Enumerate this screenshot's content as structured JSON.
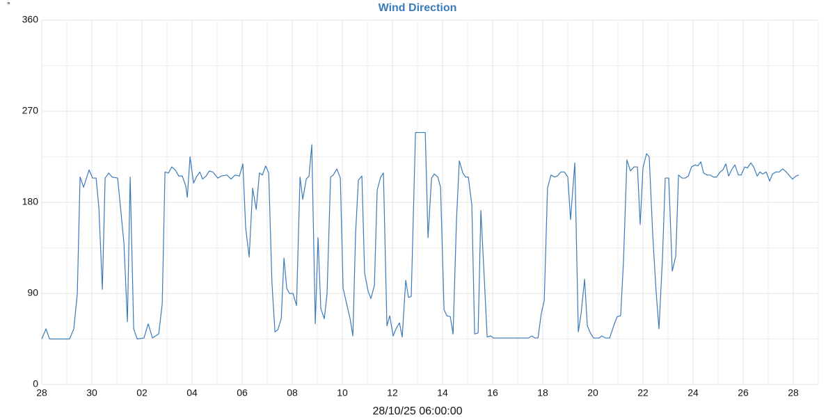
{
  "chart_data": {
    "type": "line",
    "title": "Wind Direction",
    "y_label": "°",
    "x_label": "28/10/25 06:00:00",
    "grid": true,
    "grid_minor": true,
    "xlim": [
      0,
      31
    ],
    "xticks": [
      {
        "value": 0,
        "label": "28"
      },
      {
        "value": 2,
        "label": "30"
      },
      {
        "value": 4,
        "label": "02"
      },
      {
        "value": 6,
        "label": "04"
      },
      {
        "value": 8,
        "label": "06"
      },
      {
        "value": 10,
        "label": "08"
      },
      {
        "value": 12,
        "label": "10"
      },
      {
        "value": 14,
        "label": "12"
      },
      {
        "value": 16,
        "label": "14"
      },
      {
        "value": 18,
        "label": "16"
      },
      {
        "value": 20,
        "label": "18"
      },
      {
        "value": 22,
        "label": "20"
      },
      {
        "value": 24,
        "label": "22"
      },
      {
        "value": 26,
        "label": "24"
      },
      {
        "value": 28,
        "label": "26"
      },
      {
        "value": 30,
        "label": "28"
      }
    ],
    "ylim": [
      0,
      360
    ],
    "yticks": [
      0,
      90,
      180,
      270,
      360
    ],
    "series": [
      {
        "name": "Wind Direction",
        "color": "#3a7ab8",
        "x": [
          0,
          0.17,
          0.31,
          1.11,
          1.28,
          1.42,
          1.53,
          1.67,
          1.89,
          2.03,
          2.17,
          2.28,
          2.42,
          2.53,
          2.67,
          2.81,
          3.03,
          3.28,
          3.42,
          3.53,
          3.67,
          3.81,
          4.08,
          4.25,
          4.42,
          4.67,
          4.81,
          4.92,
          5.06,
          5.19,
          5.33,
          5.47,
          5.61,
          5.75,
          5.81,
          5.92,
          6.06,
          6.17,
          6.31,
          6.42,
          6.56,
          6.69,
          6.83,
          7.03,
          7.17,
          7.39,
          7.56,
          7.72,
          7.89,
          8.03,
          8.14,
          8.28,
          8.42,
          8.56,
          8.69,
          8.81,
          8.94,
          9.06,
          9.19,
          9.31,
          9.42,
          9.56,
          9.67,
          9.78,
          9.89,
          10.03,
          10.17,
          10.31,
          10.42,
          10.56,
          10.67,
          10.78,
          10.92,
          11.03,
          11.14,
          11.28,
          11.39,
          11.53,
          11.64,
          11.78,
          11.92,
          12.03,
          12.17,
          12.31,
          12.42,
          12.53,
          12.64,
          12.78,
          12.89,
          13.03,
          13.14,
          13.28,
          13.39,
          13.53,
          13.64,
          13.78,
          13.89,
          14.03,
          14.14,
          14.28,
          14.39,
          14.53,
          14.64,
          14.75,
          14.92,
          15.31,
          15.42,
          15.56,
          15.67,
          15.81,
          15.92,
          16.06,
          16.17,
          16.31,
          16.42,
          16.56,
          16.67,
          16.81,
          16.92,
          17.03,
          17.17,
          17.28,
          17.42,
          17.53,
          17.64,
          17.78,
          17.92,
          18.03,
          19.44,
          19.56,
          19.69,
          19.81,
          19.94,
          20.06,
          20.19,
          20.33,
          20.47,
          20.58,
          20.72,
          20.86,
          21,
          21.11,
          21.28,
          21.42,
          21.53,
          21.67,
          21.78,
          21.92,
          22.03,
          22.25,
          22.36,
          22.5,
          22.67,
          22.86,
          22.97,
          23.11,
          23.22,
          23.36,
          23.5,
          23.64,
          23.78,
          23.89,
          24,
          24.14,
          24.25,
          24.39,
          24.53,
          24.64,
          24.78,
          24.89,
          25.03,
          25.17,
          25.31,
          25.42,
          25.56,
          25.69,
          25.81,
          25.94,
          26.08,
          26.19,
          26.31,
          26.42,
          26.56,
          26.69,
          26.81,
          26.94,
          27.08,
          27.19,
          27.31,
          27.42,
          27.56,
          27.67,
          27.81,
          27.92,
          28.06,
          28.17,
          28.31,
          28.42,
          28.56,
          28.67,
          28.78,
          28.92,
          29.06,
          29.17,
          29.31,
          29.44,
          29.58,
          29.72,
          29.86,
          29.97,
          30.11,
          30.22
        ],
        "values": [
          45,
          55,
          45,
          45,
          55,
          90,
          205,
          195,
          212,
          204,
          204,
          175,
          94,
          204,
          209,
          205,
          204,
          140,
          62,
          205,
          55,
          45,
          46,
          60,
          46,
          50,
          80,
          210,
          209,
          215,
          212,
          206,
          206,
          196,
          185,
          225,
          199,
          205,
          210,
          203,
          206,
          211,
          210,
          204,
          206,
          207,
          203,
          207,
          206,
          218,
          155,
          126,
          194,
          173,
          209,
          207,
          216,
          209,
          100,
          52,
          54,
          65,
          125,
          95,
          90,
          90,
          78,
          205,
          183,
          203,
          206,
          237,
          60,
          145,
          75,
          65,
          90,
          205,
          207,
          213,
          204,
          95,
          80,
          65,
          48,
          150,
          202,
          206,
          110,
          92,
          85,
          98,
          192,
          205,
          209,
          58,
          68,
          48,
          55,
          61,
          47,
          103,
          86,
          87,
          249,
          249,
          145,
          204,
          208,
          205,
          195,
          74,
          68,
          67,
          50,
          165,
          221,
          209,
          205,
          205,
          177,
          50,
          51,
          172,
          118,
          47,
          48,
          46,
          46,
          48,
          46,
          46,
          70,
          83,
          194,
          207,
          205,
          206,
          210,
          210,
          205,
          163,
          219,
          52,
          70,
          104,
          58,
          50,
          46,
          46,
          48,
          46,
          46,
          60,
          67,
          68,
          120,
          222,
          211,
          215,
          215,
          158,
          214,
          228,
          225,
          148,
          90,
          55,
          125,
          204,
          204,
          112,
          127,
          207,
          204,
          204,
          206,
          215,
          217,
          216,
          220,
          209,
          207,
          207,
          205,
          205,
          210,
          212,
          218,
          206,
          213,
          217,
          207,
          207,
          215,
          214,
          219,
          215,
          206,
          210,
          208,
          210,
          201,
          208,
          210,
          210,
          213,
          210,
          206,
          203,
          206,
          207
        ]
      }
    ]
  }
}
